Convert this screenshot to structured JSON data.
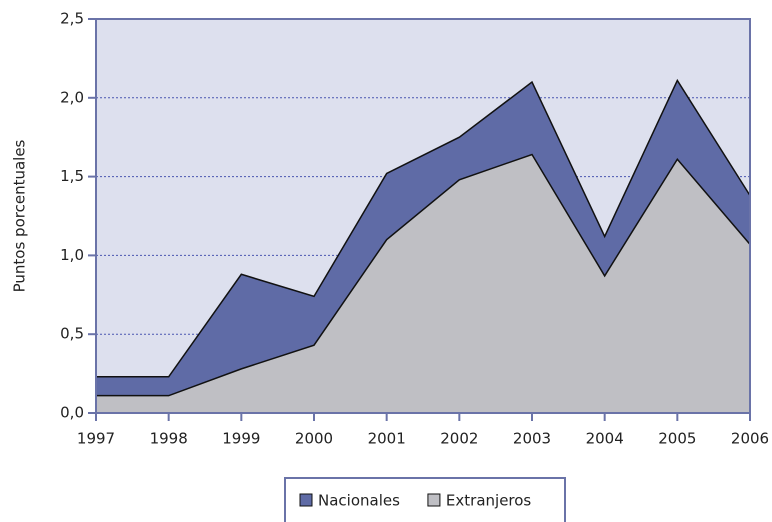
{
  "chart_data": {
    "type": "stacked_area",
    "y_label": "Puntos porcentuales",
    "x": [
      1997,
      1998,
      1999,
      2000,
      2001,
      2002,
      2003,
      2004,
      2005,
      2006
    ],
    "series": [
      {
        "name": "Nacionales",
        "color": "#5f6ba6",
        "values": [
          0.12,
          0.12,
          0.6,
          0.31,
          0.42,
          0.27,
          0.46,
          0.25,
          0.5,
          0.31
        ]
      },
      {
        "name": "Extranjeros",
        "color": "#bfbfc4",
        "values": [
          0.11,
          0.11,
          0.28,
          0.43,
          1.1,
          1.48,
          1.64,
          0.87,
          1.61,
          1.07
        ]
      }
    ],
    "xlim": [
      1997,
      2006
    ],
    "xticks": [
      1997,
      1998,
      1999,
      2000,
      2001,
      2002,
      2003,
      2004,
      2005,
      2006
    ],
    "ylim": [
      0,
      2.5
    ],
    "yticks": [
      {
        "value": 0,
        "label": "0,0"
      },
      {
        "value": 0.5,
        "label": "0,5"
      },
      {
        "value": 1,
        "label": "1,0"
      },
      {
        "value": 1.5,
        "label": "1,5"
      },
      {
        "value": 2,
        "label": "2,0"
      },
      {
        "value": 2.5,
        "label": "2,5"
      }
    ],
    "grid": true,
    "legend_position": "bottom"
  }
}
